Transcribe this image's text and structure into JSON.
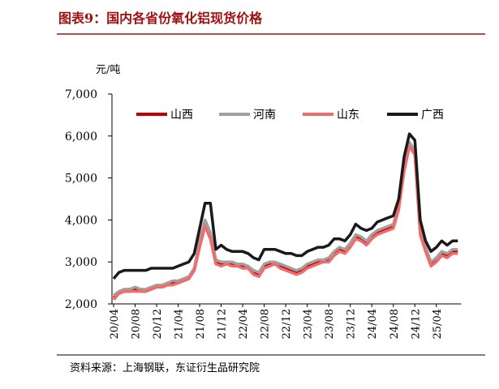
{
  "chart_data": {
    "type": "line",
    "title": "图表9：国内各省份氧化铝现货价格",
    "y_label": "元/吨",
    "source": "资料来源：上海钢联，东证衍生品研究院",
    "categories": [
      "20/04",
      null,
      null,
      null,
      "20/08",
      null,
      null,
      null,
      "20/12",
      null,
      null,
      null,
      "21/04",
      null,
      null,
      null,
      "21/08",
      null,
      null,
      null,
      "21/12",
      null,
      null,
      null,
      "22/04",
      null,
      null,
      null,
      "22/08",
      null,
      null,
      null,
      "22/12",
      null,
      null,
      null,
      "23/04",
      null,
      null,
      null,
      "23/08",
      null,
      null,
      null,
      "23/12",
      null,
      null,
      null,
      "24/04",
      null,
      null,
      null,
      "24/08",
      null,
      null,
      null,
      "24/12",
      null,
      null,
      null,
      "25/04",
      null,
      null,
      null,
      null
    ],
    "ylim": [
      2000,
      7000
    ],
    "yticks": [
      {
        "value": 2000,
        "label": "2,000"
      },
      {
        "value": 3000,
        "label": "3,000"
      },
      {
        "value": 4000,
        "label": "4,000"
      },
      {
        "value": 5000,
        "label": "5,000"
      },
      {
        "value": 6000,
        "label": "6,000"
      },
      {
        "value": 7000,
        "label": "7,000"
      }
    ],
    "series": [
      {
        "name": "山西",
        "color": "#c00000",
        "values": [
          2150,
          2250,
          2300,
          2300,
          2350,
          2300,
          2300,
          2350,
          2400,
          2400,
          2450,
          2500,
          2500,
          2550,
          2600,
          2800,
          3400,
          3900,
          3600,
          3000,
          2950,
          2950,
          2950,
          2900,
          2900,
          2850,
          2750,
          2700,
          2900,
          2950,
          2950,
          2900,
          2850,
          2800,
          2750,
          2800,
          2900,
          2950,
          3000,
          3000,
          3050,
          3200,
          3300,
          3250,
          3400,
          3600,
          3550,
          3450,
          3600,
          3700,
          3750,
          3800,
          3850,
          4300,
          5200,
          5800,
          5600,
          3700,
          3300,
          2950,
          3050,
          3200,
          3150,
          3250,
          3250
        ]
      },
      {
        "name": "河南",
        "color": "#a0a0a0",
        "values": [
          2200,
          2300,
          2350,
          2350,
          2400,
          2350,
          2350,
          2400,
          2450,
          2450,
          2500,
          2550,
          2550,
          2600,
          2650,
          2850,
          3500,
          4000,
          3700,
          3050,
          3000,
          3000,
          3000,
          2950,
          2950,
          2900,
          2800,
          2750,
          2950,
          3000,
          3000,
          2950,
          2900,
          2850,
          2800,
          2850,
          2950,
          3000,
          3050,
          3050,
          3100,
          3250,
          3350,
          3300,
          3450,
          3650,
          3600,
          3500,
          3650,
          3750,
          3800,
          3850,
          3900,
          4350,
          5250,
          5850,
          5650,
          3750,
          3350,
          3000,
          3100,
          3250,
          3200,
          3300,
          3300
        ]
      },
      {
        "name": "山东",
        "color": "#f26b6b",
        "values": [
          2100,
          2250,
          2300,
          2300,
          2300,
          2300,
          2300,
          2350,
          2400,
          2400,
          2450,
          2450,
          2500,
          2550,
          2600,
          2800,
          3350,
          3850,
          3550,
          2950,
          2900,
          2950,
          2900,
          2900,
          2850,
          2850,
          2700,
          2650,
          2850,
          2900,
          2950,
          2850,
          2800,
          2750,
          2700,
          2750,
          2850,
          2900,
          2950,
          3000,
          3000,
          3150,
          3250,
          3200,
          3350,
          3550,
          3500,
          3400,
          3550,
          3650,
          3700,
          3750,
          3800,
          4250,
          5150,
          5750,
          5550,
          3650,
          3250,
          2900,
          3000,
          3150,
          3100,
          3200,
          3200
        ]
      },
      {
        "name": "广西",
        "color": "#1a1a1a",
        "values": [
          2600,
          2750,
          2800,
          2800,
          2800,
          2800,
          2800,
          2850,
          2850,
          2850,
          2850,
          2850,
          2900,
          2950,
          3000,
          3200,
          3800,
          4400,
          4400,
          3300,
          3400,
          3300,
          3250,
          3250,
          3250,
          3200,
          3100,
          3050,
          3300,
          3300,
          3300,
          3250,
          3200,
          3200,
          3150,
          3150,
          3250,
          3300,
          3350,
          3350,
          3400,
          3550,
          3550,
          3500,
          3650,
          3900,
          3800,
          3750,
          3800,
          3950,
          4000,
          4050,
          4100,
          4500,
          5500,
          6050,
          5900,
          4000,
          3500,
          3250,
          3350,
          3500,
          3400,
          3500,
          3500
        ]
      }
    ]
  }
}
